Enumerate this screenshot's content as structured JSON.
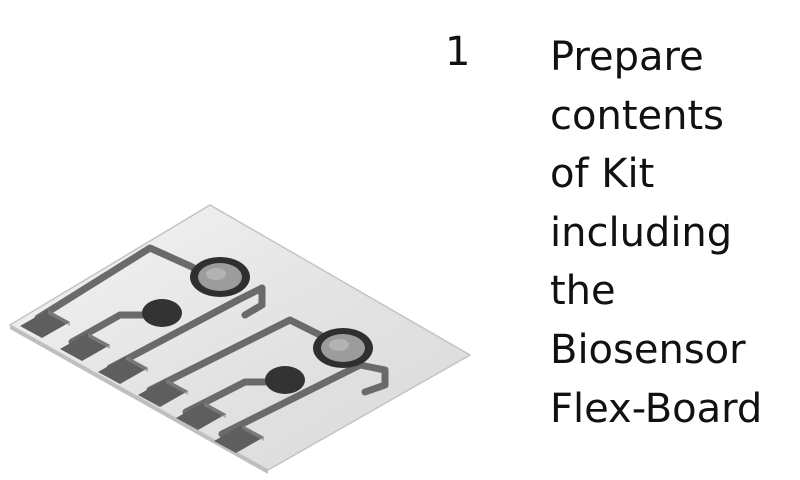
{
  "step": {
    "number": "1",
    "lines": [
      "Prepare",
      "contents",
      "of Kit",
      "including",
      "the",
      "Biosensor",
      "Flex-Board"
    ]
  },
  "illustration": {
    "icon": "biosensor-flex-board-icon",
    "colors": {
      "board": "#e6e6e6",
      "board_edge": "#bdbdbd",
      "trace": "#6e6e6e",
      "pad": "#5a5a5a",
      "electrode_ring": "#2f2f2f",
      "electrode_center": "#9a9a9a"
    }
  }
}
